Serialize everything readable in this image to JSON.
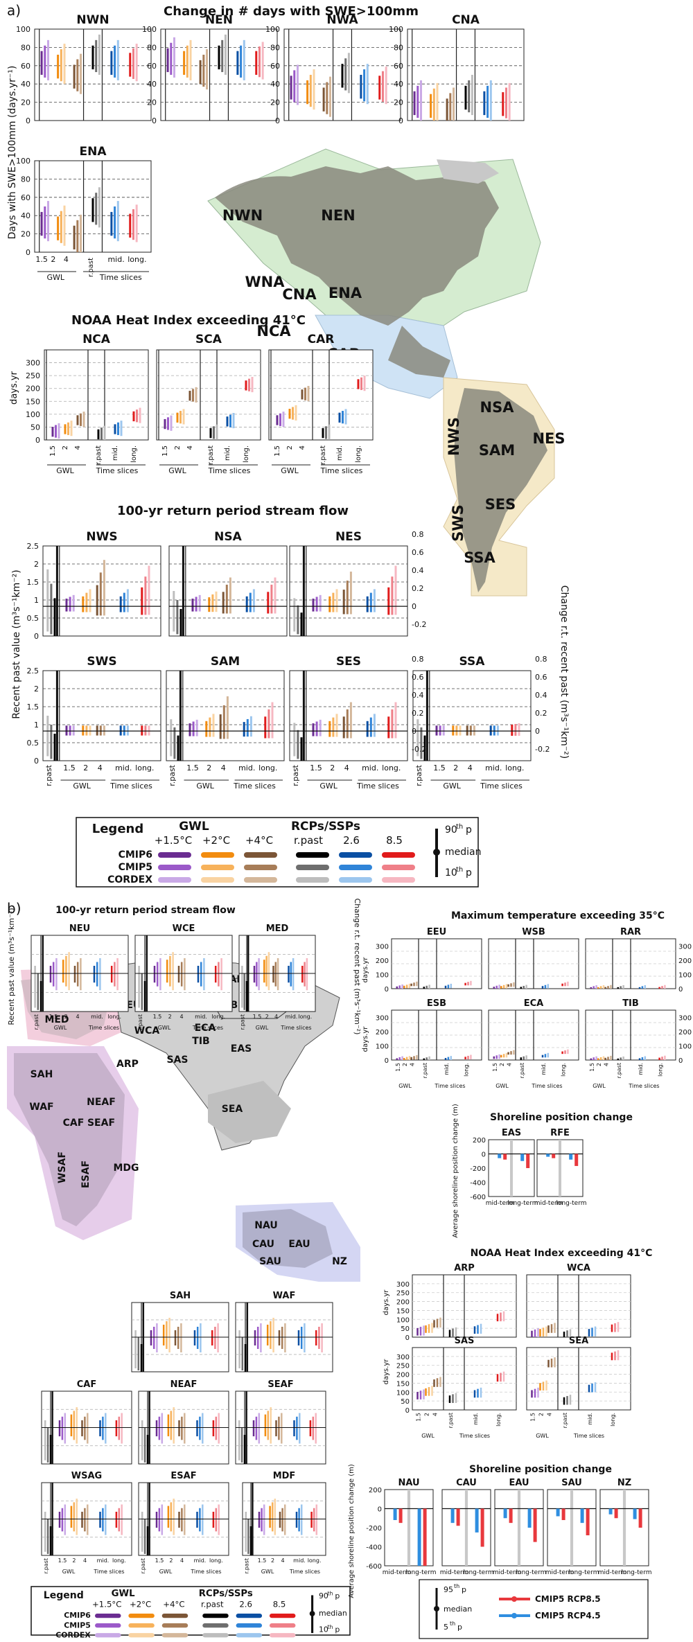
{
  "colors": {
    "gwl15": [
      "#6a2c91",
      "#9b59c9",
      "#c9a9e6"
    ],
    "gwl2": [
      "#f28c0f",
      "#f7b25b",
      "#f9d3a2"
    ],
    "gwl4": [
      "#7b5536",
      "#a77d58",
      "#d4b79a"
    ],
    "rpast": [
      "#000000",
      "#6e6e6e",
      "#bdbdbd"
    ],
    "rcp26": [
      "#0a4fa3",
      "#2f84d8",
      "#9cc6ee"
    ],
    "rcp85": [
      "#e11b1b",
      "#ef7f88",
      "#f6b7c1"
    ],
    "map_na": "#d5ecd0",
    "map_ca": "#cfe3f5",
    "map_sa": "#f5e9c8",
    "map_eur": "#f3cedd",
    "map_afr": "#e6cdea",
    "map_aus": "#d4d6f3",
    "land": "#8a8a7e",
    "land_light": "#d0d0d0",
    "cmip5_rcp85": "#e8383d",
    "cmip5_rcp45": "#2f8ee0"
  },
  "panel_a": {
    "label": "a)",
    "swe": {
      "title": "Change in # days with SWE>100mm",
      "ylabel": "Days with SWE>100mm (days.yr⁻¹)",
      "ylabel_top": "Days with SWE>100mm (",
      "ylabel_unit": "days.yr",
      "ylabel_exp": "−1",
      "yticks": [
        "0",
        "20",
        "40",
        "60",
        "80",
        "100"
      ],
      "regions": [
        "NWN",
        "NEN",
        "NWA",
        "CNA",
        "ENA"
      ],
      "gwl_ticks": [
        "1.5",
        "2",
        "4"
      ],
      "slice_ticks": [
        "r.past",
        "mid.",
        "long."
      ],
      "group_gwl": "GWL",
      "group_slices": "Time slices"
    },
    "heat": {
      "title": "NOAA Heat Index exceeding 41°C",
      "ylabel": "days.yr",
      "ylabel_exp": "−1",
      "yticks": [
        "0",
        "50",
        "100",
        "150",
        "200",
        "250",
        "300"
      ],
      "regions": [
        "NCA",
        "SCA",
        "CAR"
      ],
      "group_gwl": "GWL",
      "group_slices": "Time slices",
      "xticks": [
        "1.5",
        "2",
        "4",
        "r.past",
        "mid.",
        "long."
      ]
    },
    "flow": {
      "title": "100-yr return period stream flow",
      "ylabel_left": "Recent past value (m³s⁻¹km⁻²)",
      "ylabel_right": "Change r.t. recent past (m³s⁻¹km⁻²)",
      "yticks_left": [
        "0",
        "0.5",
        "1",
        "1.5",
        "2",
        "2.5"
      ],
      "yticks_right": [
        "-0.2",
        "0",
        "0.2",
        "0.4",
        "0.6",
        "0.8"
      ],
      "row1": [
        "NWS",
        "NSA",
        "NES"
      ],
      "row2": [
        "SWS",
        "SAM",
        "SES",
        "SSA"
      ],
      "xticks": [
        "r.past",
        "1.5",
        "2",
        "4",
        "mid.",
        "long."
      ],
      "group_gwl": "GWL",
      "group_slices": "Time slices"
    },
    "map_labels": [
      "NWN",
      "NEN",
      "WNA",
      "CNA",
      "ENA",
      "NCA",
      "SCA",
      "CAR",
      "NWS",
      "NSA",
      "NES",
      "SAM",
      "SWS",
      "SES",
      "SSA"
    ]
  },
  "legend": {
    "title": "Legend",
    "gwl_head": "GWL",
    "gwl_cols": [
      "+1.5°C",
      "+2°C",
      "+4°C"
    ],
    "rcp_head": "RCPs/SSPs",
    "rcp_cols": [
      "r.past",
      "2.6",
      "8.5"
    ],
    "rows": [
      "CMIP6",
      "CMIP5",
      "CORDEX"
    ],
    "p90": "90",
    "p90_sup": "th",
    "p90_suffix": "p",
    "median": "median",
    "p10": "10",
    "p10_sup": "th",
    "p10_suffix": "p"
  },
  "panel_b": {
    "label": "b)",
    "flow": {
      "title": "100-yr return period stream flow",
      "regions_top": [
        "NEU",
        "WCE",
        "MED"
      ],
      "ylabel_left": "Recent past value (m³s⁻¹km⁻²)",
      "ylabel_right": "Change r.t. recent past (m³s⁻¹km⁻²)",
      "regions_mid": [
        "SAH",
        "WAF"
      ],
      "regions_row2": [
        "CAF",
        "NEAF",
        "SEAF"
      ],
      "regions_row3": [
        "WSAG",
        "ESAF",
        "MDF"
      ],
      "xticks": [
        "r.past",
        "1.5",
        "2",
        "4",
        "mid.",
        "long."
      ],
      "group_gwl": "GWL",
      "group_slices": "Time slices"
    },
    "tmax": {
      "title": "Maximum temperature exceeding 35°C",
      "row1": [
        "EEU",
        "WSB",
        "RAR"
      ],
      "row2": [
        "ESB",
        "ECA",
        "TIB"
      ],
      "ylabel": "days.yr",
      "ylabel_exp": "−1",
      "yticks": [
        "0",
        "100",
        "200",
        "300"
      ],
      "xticks": [
        "1.5",
        "2",
        "4",
        "r.past",
        "mid.",
        "long."
      ],
      "group_gwl": "GWL",
      "group_slices": "Time slices"
    },
    "shore1": {
      "title": "Shoreline position change",
      "regions": [
        "EAS",
        "RFE"
      ],
      "ylabel": "Average shoreline position change (m)",
      "yticks": [
        "200",
        "0",
        "-200",
        "-400",
        "-600"
      ],
      "xticks": [
        "mid-term",
        "long-term"
      ]
    },
    "heat": {
      "title": "NOAA Heat Index exceeding 41°C",
      "row1": [
        "ARP",
        "WCA"
      ],
      "row2": [
        "SAS",
        "SEA"
      ],
      "ylabel": "days.yr",
      "ylabel_exp": "−1",
      "yticks": [
        "0",
        "50",
        "100",
        "150",
        "200",
        "250",
        "300"
      ],
      "xticks": [
        "1.5",
        "2",
        "4",
        "r.past",
        "mid.",
        "long."
      ],
      "group_gwl": "GWL",
      "group_slices": "Time slices"
    },
    "shore2": {
      "title": "Shoreline position change",
      "regions": [
        "NAU",
        "CAU",
        "EAU",
        "SAU",
        "NZ"
      ],
      "ylabel": "Average shoreline position change (m)",
      "yticks": [
        "200",
        "0",
        "-200",
        "-400",
        "-600"
      ],
      "xticks": [
        "mid-term",
        "long-term"
      ]
    },
    "map_labels": [
      "NEU",
      "WCE",
      "MED",
      "EEU",
      "WSB",
      "ESB",
      "RAR",
      "RFE",
      "WCA",
      "ECA",
      "TIB",
      "ARP",
      "SAS",
      "EAS",
      "SEA",
      "SAH",
      "WAF",
      "CAF",
      "NEAF",
      "SEAF",
      "WSAF",
      "ESAF",
      "MDG",
      "NAU",
      "CAU",
      "EAU",
      "SAU",
      "NZ"
    ],
    "legend2": {
      "p95": "95",
      "p95_sup": "th",
      "p95_suffix": "p",
      "median": "median",
      "p5": "5",
      "p5_sup": "th",
      "p5_suffix": "p",
      "rcp85": "CMIP5 RCP8.5",
      "rcp45": "CMIP5 RCP4.5"
    }
  },
  "chart_data": [
    {
      "type": "bar",
      "title": "Change in # days with SWE>100mm",
      "ylabel": "Days with SWE>100mm (days.yr⁻¹)",
      "ylim": [
        0,
        100
      ],
      "categories": [
        "1.5",
        "2",
        "4",
        "r.past",
        "mid. 2.6",
        "long. 2.6",
        "mid. 8.5",
        "long. 8.5"
      ],
      "note_estimate": "median values read off chart, CMIP6 series",
      "series": [
        {
          "name": "NWN",
          "values": [
            62,
            58,
            47,
            68,
            62,
            60,
            57,
            45
          ]
        },
        {
          "name": "NEN",
          "values": [
            65,
            62,
            52,
            68,
            62,
            62,
            60,
            50
          ]
        },
        {
          "name": "NWA",
          "values": [
            35,
            30,
            22,
            48,
            36,
            35,
            32,
            20
          ]
        },
        {
          "name": "CNA",
          "values": [
            18,
            15,
            10,
            24,
            18,
            17,
            15,
            8
          ]
        },
        {
          "name": "ENA",
          "values": [
            30,
            25,
            15,
            45,
            30,
            28,
            25,
            15
          ]
        }
      ]
    },
    {
      "type": "bar",
      "title": "NOAA Heat Index exceeding 41°C",
      "ylabel": "days.yr⁻¹",
      "ylim": [
        0,
        350
      ],
      "categories": [
        "1.5",
        "2",
        "4",
        "r.past",
        "mid.",
        "long."
      ],
      "series": [
        {
          "name": "NCA",
          "values": [
            30,
            40,
            75,
            20,
            40,
            90
          ]
        },
        {
          "name": "SCA",
          "values": [
            60,
            85,
            170,
            25,
            70,
            210
          ]
        },
        {
          "name": "CAR",
          "values": [
            75,
            100,
            175,
            25,
            85,
            215
          ]
        }
      ]
    },
    {
      "type": "bar",
      "title": "100-yr return period stream flow",
      "ylabel": "Recent past value (m³s⁻¹km⁻²)",
      "ylim": [
        0,
        2.5
      ],
      "categories": [
        "r.past",
        "1.5",
        "2",
        "4",
        "mid.",
        "long."
      ],
      "series": [
        {
          "name": "NWS",
          "values": [
            0.8,
            0.05,
            0.1,
            0.35,
            0.1,
            0.3
          ]
        },
        {
          "name": "NSA",
          "values": [
            0.5,
            0.05,
            0.08,
            0.2,
            0.1,
            0.2
          ]
        },
        {
          "name": "NES",
          "values": [
            0.4,
            0.05,
            0.1,
            0.25,
            0.1,
            0.3
          ]
        },
        {
          "name": "SWS",
          "values": [
            0.5,
            0.0,
            0.0,
            0.0,
            0.0,
            0.0
          ]
        },
        {
          "name": "SAM",
          "values": [
            0.45,
            0.05,
            0.1,
            0.25,
            0.08,
            0.2
          ]
        },
        {
          "name": "SES",
          "values": [
            0.4,
            0.05,
            0.1,
            0.2,
            0.1,
            0.2
          ]
        },
        {
          "name": "SSA",
          "values": [
            0.45,
            0.0,
            0.0,
            0.0,
            0.0,
            0.02
          ]
        }
      ]
    },
    {
      "type": "bar",
      "title": "Maximum temperature exceeding 35°C",
      "ylabel": "days.yr⁻¹",
      "ylim": [
        0,
        350
      ],
      "categories": [
        "1.5",
        "2",
        "4",
        "r.past",
        "mid.",
        "long."
      ],
      "series": [
        {
          "name": "EEU",
          "values": [
            5,
            10,
            25,
            3,
            10,
            30
          ]
        },
        {
          "name": "WSB",
          "values": [
            3,
            8,
            20,
            2,
            8,
            25
          ]
        },
        {
          "name": "RAR",
          "values": [
            0,
            0,
            1,
            0,
            0,
            1
          ]
        },
        {
          "name": "ESB",
          "values": [
            2,
            4,
            10,
            1,
            4,
            12
          ]
        },
        {
          "name": "ECA",
          "values": [
            15,
            25,
            45,
            8,
            25,
            50
          ]
        },
        {
          "name": "TIB",
          "values": [
            1,
            2,
            5,
            0,
            2,
            6
          ]
        }
      ]
    },
    {
      "type": "bar",
      "title": "Shoreline position change",
      "ylabel": "Average shoreline position change (m)",
      "ylim": [
        -600,
        200
      ],
      "categories": [
        "mid-term",
        "long-term"
      ],
      "series": [
        {
          "name": "EAS RCP4.5",
          "values": [
            -60,
            -100
          ]
        },
        {
          "name": "EAS RCP8.5",
          "values": [
            -80,
            -200
          ]
        },
        {
          "name": "RFE RCP4.5",
          "values": [
            -40,
            -80
          ]
        },
        {
          "name": "RFE RCP8.5",
          "values": [
            -60,
            -170
          ]
        },
        {
          "name": "NAU RCP4.5",
          "values": [
            -120,
            -600
          ]
        },
        {
          "name": "NAU RCP8.5",
          "values": [
            -150,
            -600
          ]
        },
        {
          "name": "CAU RCP4.5",
          "values": [
            -150,
            -250
          ]
        },
        {
          "name": "CAU RCP8.5",
          "values": [
            -180,
            -400
          ]
        },
        {
          "name": "EAU RCP4.5",
          "values": [
            -100,
            -200
          ]
        },
        {
          "name": "EAU RCP8.5",
          "values": [
            -150,
            -350
          ]
        },
        {
          "name": "SAU RCP4.5",
          "values": [
            -80,
            -150
          ]
        },
        {
          "name": "SAU RCP8.5",
          "values": [
            -120,
            -280
          ]
        },
        {
          "name": "NZ RCP4.5",
          "values": [
            -60,
            -110
          ]
        },
        {
          "name": "NZ RCP8.5",
          "values": [
            -100,
            -200
          ]
        }
      ]
    }
  ]
}
